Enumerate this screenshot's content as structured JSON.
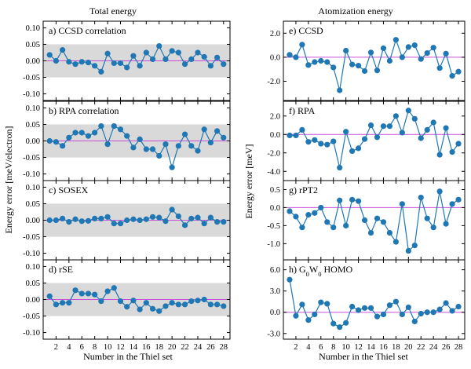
{
  "figure": {
    "left_title": "Total energy",
    "right_title": "Atomization energy",
    "left_ylabel": "Energy error [meV/electron]",
    "right_ylabel": "Energy error [meV]",
    "left_xlabel": "Number in the Thiel set",
    "right_xlabel": "Number in the Thiel set"
  },
  "colors": {
    "marker": "#1f77b4",
    "zero_line": "#c94fd8",
    "band": "#d9d9d9"
  },
  "chart_data": [
    {
      "type": "line",
      "title": "a) CCSD correlation",
      "title_parts": [
        {
          "t": "a) CCSD correlation"
        }
      ],
      "x": [
        1,
        2,
        3,
        4,
        5,
        6,
        7,
        8,
        9,
        10,
        11,
        12,
        13,
        14,
        15,
        16,
        17,
        18,
        19,
        20,
        21,
        22,
        23,
        24,
        25,
        26,
        27,
        28
      ],
      "values": [
        0.018,
        0.0,
        0.033,
        -0.003,
        -0.01,
        -0.003,
        -0.005,
        -0.015,
        -0.033,
        0.022,
        -0.007,
        -0.007,
        -0.02,
        0.015,
        -0.015,
        0.025,
        0.005,
        0.045,
        0.005,
        0.03,
        0.025,
        -0.01,
        0.005,
        0.025,
        0.012,
        -0.015,
        0.01,
        -0.01
      ],
      "ylim": [
        -0.12,
        0.12
      ],
      "yticks": [
        "0.10",
        "0.05",
        "0.00",
        "-0.05",
        "-0.10"
      ],
      "ytick_values": [
        0.1,
        0.05,
        0.0,
        -0.05,
        -0.1
      ],
      "band": [
        -0.05,
        0.05
      ],
      "grid": false
    },
    {
      "type": "line",
      "title": "b) RPA correlation",
      "title_parts": [
        {
          "t": "b) RPA correlation"
        }
      ],
      "x": [
        1,
        2,
        3,
        4,
        5,
        6,
        7,
        8,
        9,
        10,
        11,
        12,
        13,
        14,
        15,
        16,
        17,
        18,
        19,
        20,
        21,
        22,
        23,
        24,
        25,
        26,
        27,
        28
      ],
      "values": [
        0.0,
        -0.003,
        -0.015,
        0.01,
        0.025,
        0.025,
        0.015,
        0.025,
        0.045,
        -0.01,
        0.045,
        0.035,
        0.015,
        -0.02,
        0.005,
        -0.025,
        -0.025,
        -0.045,
        -0.01,
        -0.08,
        -0.015,
        0.02,
        -0.015,
        -0.03,
        0.035,
        -0.005,
        0.03,
        0.01
      ],
      "ylim": [
        -0.12,
        0.12
      ],
      "yticks": [
        "0.10",
        "0.05",
        "0.00",
        "-0.05",
        "-0.10"
      ],
      "ytick_values": [
        0.1,
        0.05,
        0.0,
        -0.05,
        -0.1
      ],
      "band": [
        -0.05,
        0.05
      ],
      "grid": false
    },
    {
      "type": "line",
      "title": "c) SOSEX",
      "title_parts": [
        {
          "t": "c) SOSEX"
        }
      ],
      "x": [
        1,
        2,
        3,
        4,
        5,
        6,
        7,
        8,
        9,
        10,
        11,
        12,
        13,
        14,
        15,
        16,
        17,
        18,
        19,
        20,
        21,
        22,
        23,
        24,
        25,
        26,
        27,
        28
      ],
      "values": [
        0.0,
        0.0,
        0.005,
        -0.005,
        0.003,
        -0.003,
        -0.002,
        0.005,
        0.005,
        0.01,
        -0.01,
        -0.01,
        0.0,
        0.003,
        0.0,
        0.003,
        0.01,
        0.008,
        -0.003,
        0.032,
        0.012,
        -0.015,
        0.005,
        0.008,
        -0.01,
        0.008,
        -0.005,
        -0.005
      ],
      "ylim": [
        -0.12,
        0.12
      ],
      "yticks": [
        "0.10",
        "0.05",
        "0.00",
        "-0.05",
        "-0.10"
      ],
      "ytick_values": [
        0.1,
        0.05,
        0.0,
        -0.05,
        -0.1
      ],
      "band": [
        -0.05,
        0.05
      ],
      "grid": false
    },
    {
      "type": "line",
      "title": "d) rSE",
      "title_parts": [
        {
          "t": "d) rSE"
        }
      ],
      "x": [
        1,
        2,
        3,
        4,
        5,
        6,
        7,
        8,
        9,
        10,
        11,
        12,
        13,
        14,
        15,
        16,
        17,
        18,
        19,
        20,
        21,
        22,
        23,
        24,
        25,
        26,
        27,
        28
      ],
      "values": [
        0.01,
        -0.015,
        -0.01,
        -0.01,
        0.028,
        0.018,
        0.018,
        0.015,
        -0.005,
        0.025,
        0.035,
        -0.005,
        -0.022,
        -0.003,
        -0.03,
        -0.01,
        -0.028,
        -0.035,
        -0.02,
        -0.01,
        -0.015,
        -0.015,
        -0.005,
        -0.003,
        0.0,
        -0.015,
        -0.015,
        -0.02
      ],
      "ylim": [
        -0.12,
        0.12
      ],
      "yticks": [
        "0.10",
        "0.05",
        "0.00",
        "-0.05",
        "-0.10"
      ],
      "ytick_values": [
        0.1,
        0.05,
        0.0,
        -0.05,
        -0.1
      ],
      "band": [
        -0.05,
        0.05
      ],
      "grid": false
    },
    {
      "type": "line",
      "title": "e) CCSD",
      "title_parts": [
        {
          "t": "e) CCSD"
        }
      ],
      "x": [
        1,
        2,
        3,
        4,
        5,
        6,
        7,
        8,
        9,
        10,
        11,
        12,
        13,
        14,
        15,
        16,
        17,
        18,
        19,
        20,
        21,
        22,
        23,
        24,
        25,
        26,
        27,
        28
      ],
      "values": [
        0.2,
        0.0,
        1.05,
        -0.65,
        -0.4,
        -0.3,
        -0.4,
        -0.85,
        -2.75,
        0.55,
        -0.6,
        -0.7,
        -1.15,
        0.4,
        -1.1,
        0.75,
        -0.3,
        1.45,
        0.0,
        0.85,
        1.0,
        -0.15,
        0.35,
        0.8,
        -0.9,
        0.3,
        -1.55,
        -1.2
      ],
      "ylim": [
        -3.6,
        3.0
      ],
      "yticks": [
        "2.0",
        "0.0",
        "-2.0"
      ],
      "ytick_values": [
        2.0,
        0.0,
        -2.0
      ],
      "grid": false
    },
    {
      "type": "line",
      "title": "f) RPA",
      "title_parts": [
        {
          "t": "f) RPA"
        }
      ],
      "x": [
        1,
        2,
        3,
        4,
        5,
        6,
        7,
        8,
        9,
        10,
        11,
        12,
        13,
        14,
        15,
        16,
        17,
        18,
        19,
        20,
        21,
        22,
        23,
        24,
        25,
        26,
        27,
        28
      ],
      "values": [
        -0.1,
        -0.1,
        0.5,
        -0.8,
        -0.6,
        -1.0,
        -1.1,
        -0.75,
        -3.6,
        0.3,
        -1.8,
        -1.5,
        -0.5,
        1.0,
        -0.3,
        0.9,
        0.9,
        2.0,
        0.2,
        2.6,
        1.7,
        -0.4,
        0.5,
        1.3,
        -2.2,
        0.7,
        -1.9,
        -1.0
      ],
      "ylim": [
        -5.0,
        3.6
      ],
      "yticks": [
        "2.0",
        "0.0",
        "-2.0",
        "-4.0"
      ],
      "ytick_values": [
        2.0,
        0.0,
        -2.0,
        -4.0
      ],
      "grid": false
    },
    {
      "type": "line",
      "title": "g) rPT2",
      "title_parts": [
        {
          "t": "g) rPT2"
        }
      ],
      "x": [
        1,
        2,
        3,
        4,
        5,
        6,
        7,
        8,
        9,
        10,
        11,
        12,
        13,
        14,
        15,
        16,
        17,
        18,
        19,
        20,
        21,
        22,
        23,
        24,
        25,
        26,
        27,
        28
      ],
      "values": [
        -0.1,
        -0.25,
        -0.55,
        -0.2,
        -0.15,
        0.0,
        -0.4,
        -0.55,
        0.2,
        -0.5,
        0.22,
        0.18,
        -0.35,
        -0.7,
        -0.3,
        -0.4,
        -0.7,
        -0.95,
        0.1,
        -1.2,
        -1.05,
        0.28,
        -0.3,
        -0.55,
        0.45,
        -0.45,
        0.1,
        0.22
      ],
      "ylim": [
        -1.45,
        0.75
      ],
      "yticks": [
        "0.5",
        "0.0",
        "-0.5",
        "-1.0"
      ],
      "ytick_values": [
        0.5,
        0.0,
        -0.5,
        -1.0
      ],
      "grid": false
    },
    {
      "type": "line",
      "title": "h) G0W0 HOMO",
      "title_parts": [
        {
          "t": "h) G"
        },
        {
          "t": "0",
          "sub": true
        },
        {
          "t": "W"
        },
        {
          "t": "0",
          "sub": true
        },
        {
          "t": " HOMO"
        }
      ],
      "x": [
        1,
        2,
        3,
        4,
        5,
        6,
        7,
        8,
        9,
        10,
        11,
        12,
        13,
        14,
        15,
        16,
        17,
        18,
        19,
        20,
        21,
        22,
        23,
        24,
        25,
        26,
        27,
        28
      ],
      "values": [
        4.6,
        -0.5,
        1.1,
        -1.1,
        -0.3,
        1.4,
        1.2,
        -1.6,
        -2.1,
        -1.5,
        0.8,
        0.3,
        0.6,
        0.6,
        -0.6,
        -0.3,
        1.0,
        1.5,
        -0.3,
        0.7,
        -1.3,
        -0.2,
        0.0,
        0.0,
        0.4,
        1.3,
        0.2,
        0.8
      ],
      "ylim": [
        -3.8,
        7.4
      ],
      "yticks": [
        "6.0",
        "3.0",
        "0.0",
        "-3.0"
      ],
      "ytick_values": [
        6.0,
        3.0,
        0.0,
        -3.0
      ],
      "grid": false
    }
  ],
  "x_axis": {
    "xlim": [
      0,
      29
    ],
    "xticks": [
      "2",
      "4",
      "6",
      "8",
      "10",
      "12",
      "14",
      "16",
      "18",
      "20",
      "22",
      "24",
      "26",
      "28"
    ],
    "xtick_values": [
      2,
      4,
      6,
      8,
      10,
      12,
      14,
      16,
      18,
      20,
      22,
      24,
      26,
      28
    ]
  }
}
